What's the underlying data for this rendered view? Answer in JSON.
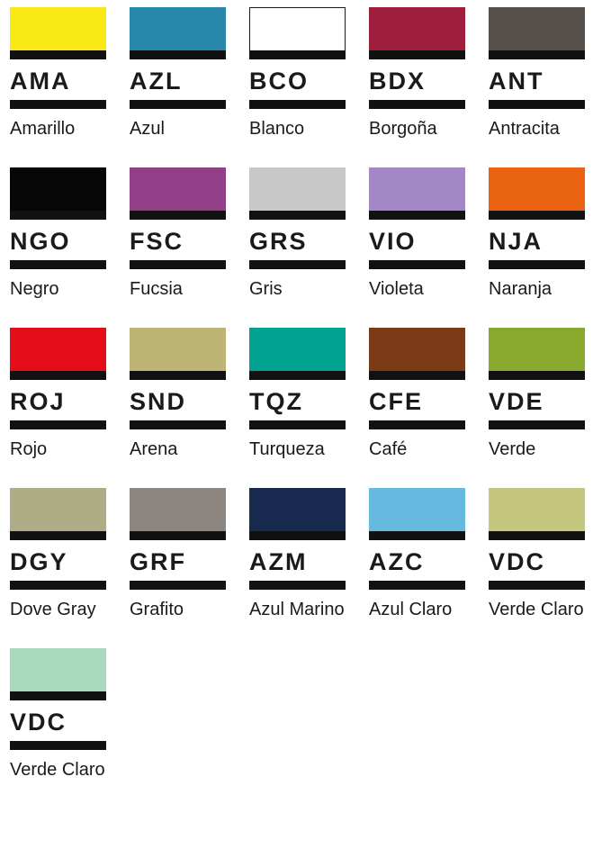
{
  "palette": {
    "bar_color": "#111111",
    "text_color": "#1a1a1a",
    "swatches": [
      {
        "code": "AMA",
        "name": "Amarillo",
        "color": "#F8E914",
        "border": false
      },
      {
        "code": "AZL",
        "name": "Azul",
        "color": "#2787A8",
        "border": false
      },
      {
        "code": "BCO",
        "name": "Blanco",
        "color": "#FFFFFF",
        "border": true
      },
      {
        "code": "BDX",
        "name": "Borgoña",
        "color": "#9D1F3D",
        "border": false
      },
      {
        "code": "ANT",
        "name": "Antracita",
        "color": "#57504A",
        "border": false
      },
      {
        "code": "NGO",
        "name": "Negro",
        "color": "#070707",
        "border": false
      },
      {
        "code": "FSC",
        "name": "Fucsia",
        "color": "#913F86",
        "border": false
      },
      {
        "code": "GRS",
        "name": "Gris",
        "color": "#C7C7C7",
        "border": false
      },
      {
        "code": "VIO",
        "name": "Violeta",
        "color": "#A289C6",
        "border": false
      },
      {
        "code": "NJA",
        "name": "Naranja",
        "color": "#E96312",
        "border": false
      },
      {
        "code": "ROJ",
        "name": "Rojo",
        "color": "#E60D1A",
        "border": false
      },
      {
        "code": "SND",
        "name": "Arena",
        "color": "#BDB476",
        "border": false
      },
      {
        "code": "TQZ",
        "name": "Turqueza",
        "color": "#02A290",
        "border": false
      },
      {
        "code": "CFE",
        "name": "Café",
        "color": "#7A3A15",
        "border": false
      },
      {
        "code": "VDE",
        "name": "Verde",
        "color": "#8AA92F",
        "border": false
      },
      {
        "code": "DGY",
        "name": "Dove Gray",
        "color": "#AEAD85",
        "border": false
      },
      {
        "code": "GRF",
        "name": "Grafito",
        "color": "#8D8580",
        "border": false
      },
      {
        "code": "AZM",
        "name": "Azul Marino",
        "color": "#17294E",
        "border": false
      },
      {
        "code": "AZC",
        "name": "Azul Claro",
        "color": "#66BADF",
        "border": false
      },
      {
        "code": "VDC",
        "name": "Verde Claro",
        "color": "#C5C77F",
        "border": false
      },
      {
        "code": "VDC",
        "name": "Verde Claro",
        "color": "#A9D9BD",
        "border": false
      }
    ]
  }
}
